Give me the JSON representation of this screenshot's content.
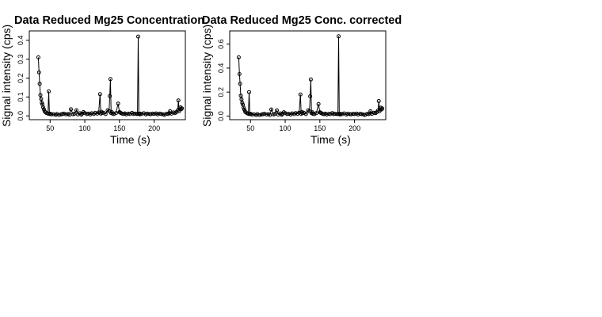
{
  "chart_data": [
    {
      "type": "scatter",
      "title": "Data Reduced Mg25 Concentration",
      "xlabel": "Time (s)",
      "ylabel": "Signal intensity (cps)",
      "xlim": [
        20,
        245
      ],
      "ylim": [
        -0.02,
        0.45
      ],
      "xticks": [
        50,
        100,
        150,
        200
      ],
      "yticks": [
        0.0,
        0.1,
        0.2,
        0.3,
        0.4
      ],
      "ytick_labels": [
        "0.0",
        "0.1",
        "0.2",
        "0.3",
        "0.4"
      ],
      "grid": false,
      "series": [
        {
          "style": "points-with-lines",
          "x": [
            33,
            34,
            35,
            36,
            37,
            38,
            39,
            40,
            41,
            42,
            43,
            45,
            47,
            48,
            49,
            50,
            52,
            55,
            58,
            60,
            63,
            66,
            68,
            70,
            73,
            76,
            78,
            80,
            83,
            85,
            88,
            90,
            93,
            95,
            96,
            98,
            100,
            103,
            105,
            108,
            110,
            113,
            115,
            118,
            120,
            122,
            123,
            124,
            125,
            127,
            130,
            133,
            135,
            136,
            137,
            138,
            139,
            140,
            142,
            145,
            148,
            150,
            151,
            152,
            154,
            156,
            158,
            160,
            163,
            165,
            168,
            170,
            172,
            175,
            176,
            177,
            178,
            179,
            180,
            182,
            185,
            188,
            190,
            193,
            195,
            198,
            200,
            203,
            205,
            208,
            210,
            213,
            215,
            218,
            220,
            222,
            223,
            225,
            228,
            230,
            232,
            234,
            235,
            236,
            237,
            238,
            239,
            240
          ],
          "y": [
            0.31,
            0.23,
            0.17,
            0.11,
            0.09,
            0.07,
            0.06,
            0.045,
            0.035,
            0.025,
            0.02,
            0.015,
            0.012,
            0.13,
            0.01,
            0.012,
            0.008,
            0.009,
            0.006,
            0.01,
            0.005,
            0.008,
            0.01,
            0.012,
            0.008,
            0.01,
            0.006,
            0.035,
            0.009,
            0.011,
            0.03,
            0.008,
            0.014,
            0.007,
            0.012,
            0.02,
            0.015,
            0.01,
            0.012,
            0.008,
            0.014,
            0.01,
            0.016,
            0.012,
            0.018,
            0.115,
            0.012,
            0.022,
            0.015,
            0.017,
            0.01,
            0.03,
            0.025,
            0.105,
            0.195,
            0.015,
            0.02,
            0.012,
            0.01,
            0.015,
            0.065,
            0.02,
            0.018,
            0.015,
            0.012,
            0.01,
            0.013,
            0.008,
            0.012,
            0.01,
            0.016,
            0.01,
            0.012,
            0.01,
            0.012,
            0.42,
            0.011,
            0.008,
            0.012,
            0.01,
            0.014,
            0.008,
            0.012,
            0.01,
            0.009,
            0.012,
            0.01,
            0.013,
            0.008,
            0.012,
            0.01,
            0.008,
            0.006,
            0.012,
            0.01,
            0.014,
            0.025,
            0.012,
            0.018,
            0.015,
            0.02,
            0.03,
            0.082,
            0.025,
            0.035,
            0.045,
            0.035,
            0.04
          ]
        }
      ]
    },
    {
      "type": "scatter",
      "title": "Data Reduced Mg25 Conc. corrected",
      "xlabel": "Time (s)",
      "ylabel": "Signal intensity (cps)",
      "xlim": [
        20,
        245
      ],
      "ylim": [
        -0.03,
        0.71
      ],
      "xticks": [
        50,
        100,
        150,
        200
      ],
      "yticks": [
        0.0,
        0.2,
        0.4,
        0.6
      ],
      "ytick_labels": [
        "0.0",
        "0.2",
        "0.4",
        "0.6"
      ],
      "grid": false,
      "series": [
        {
          "style": "points-with-lines",
          "x": [
            33,
            34,
            35,
            36,
            37,
            38,
            39,
            40,
            41,
            42,
            43,
            45,
            47,
            48,
            49,
            50,
            52,
            55,
            58,
            60,
            63,
            66,
            68,
            70,
            73,
            76,
            78,
            80,
            83,
            85,
            88,
            90,
            93,
            95,
            96,
            98,
            100,
            103,
            105,
            108,
            110,
            113,
            115,
            118,
            120,
            122,
            123,
            124,
            125,
            127,
            130,
            133,
            135,
            136,
            137,
            138,
            139,
            140,
            142,
            145,
            148,
            150,
            151,
            152,
            154,
            156,
            158,
            160,
            163,
            165,
            168,
            170,
            172,
            175,
            176,
            177,
            178,
            179,
            180,
            182,
            185,
            188,
            190,
            193,
            195,
            198,
            200,
            203,
            205,
            208,
            210,
            213,
            215,
            218,
            220,
            222,
            223,
            225,
            228,
            230,
            232,
            234,
            235,
            236,
            237,
            238,
            239,
            240
          ],
          "y": [
            0.49,
            0.35,
            0.27,
            0.17,
            0.14,
            0.11,
            0.095,
            0.07,
            0.055,
            0.04,
            0.032,
            0.024,
            0.019,
            0.2,
            0.016,
            0.019,
            0.013,
            0.014,
            0.009,
            0.016,
            0.008,
            0.013,
            0.016,
            0.019,
            0.013,
            0.016,
            0.009,
            0.055,
            0.014,
            0.017,
            0.047,
            0.013,
            0.022,
            0.011,
            0.019,
            0.032,
            0.024,
            0.016,
            0.019,
            0.013,
            0.022,
            0.016,
            0.025,
            0.019,
            0.028,
            0.18,
            0.019,
            0.035,
            0.024,
            0.027,
            0.016,
            0.047,
            0.04,
            0.165,
            0.305,
            0.024,
            0.032,
            0.019,
            0.016,
            0.024,
            0.1,
            0.032,
            0.028,
            0.024,
            0.019,
            0.016,
            0.02,
            0.013,
            0.019,
            0.016,
            0.025,
            0.016,
            0.019,
            0.016,
            0.019,
            0.665,
            0.017,
            0.013,
            0.019,
            0.016,
            0.022,
            0.013,
            0.019,
            0.016,
            0.014,
            0.019,
            0.016,
            0.02,
            0.013,
            0.019,
            0.016,
            0.013,
            0.009,
            0.019,
            0.016,
            0.022,
            0.04,
            0.019,
            0.028,
            0.024,
            0.032,
            0.047,
            0.125,
            0.04,
            0.055,
            0.07,
            0.055,
            0.063
          ]
        }
      ]
    }
  ]
}
